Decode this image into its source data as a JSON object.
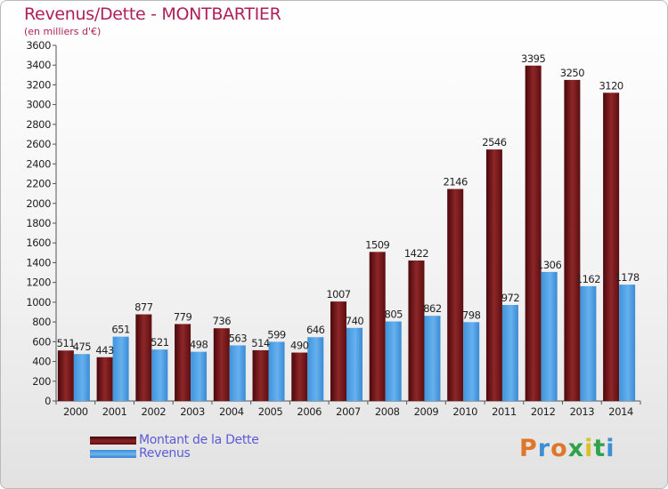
{
  "chart_data": {
    "type": "bar",
    "title": "Revenus/Dette - MONTBARTIER",
    "subtitle": "(en milliers d'€)",
    "categories": [
      "2000",
      "2001",
      "2002",
      "2003",
      "2004",
      "2005",
      "2006",
      "2007",
      "2008",
      "2009",
      "2010",
      "2011",
      "2012",
      "2013",
      "2014"
    ],
    "series": [
      {
        "name": "Montant de la Dette",
        "values": [
          511,
          443,
          877,
          779,
          736,
          514,
          490,
          1007,
          1509,
          1422,
          2146,
          2546,
          3395,
          3250,
          3120
        ]
      },
      {
        "name": "Revenus",
        "values": [
          475,
          651,
          521,
          498,
          563,
          599,
          646,
          740,
          805,
          862,
          798,
          972,
          1306,
          1162,
          1178
        ]
      }
    ],
    "ylim": [
      0,
      3600
    ],
    "yticks": [
      0,
      200,
      400,
      600,
      800,
      1000,
      1200,
      1400,
      1600,
      1800,
      2000,
      2200,
      2400,
      2600,
      2800,
      3000,
      3200,
      3400,
      3600
    ],
    "grid": false,
    "legend_position": "bottom-left",
    "colors": {
      "dette": "#7a1a1d",
      "revenus": "#4ea6e6",
      "title": "#b02058"
    }
  },
  "logo": {
    "text": "Proxiti"
  }
}
